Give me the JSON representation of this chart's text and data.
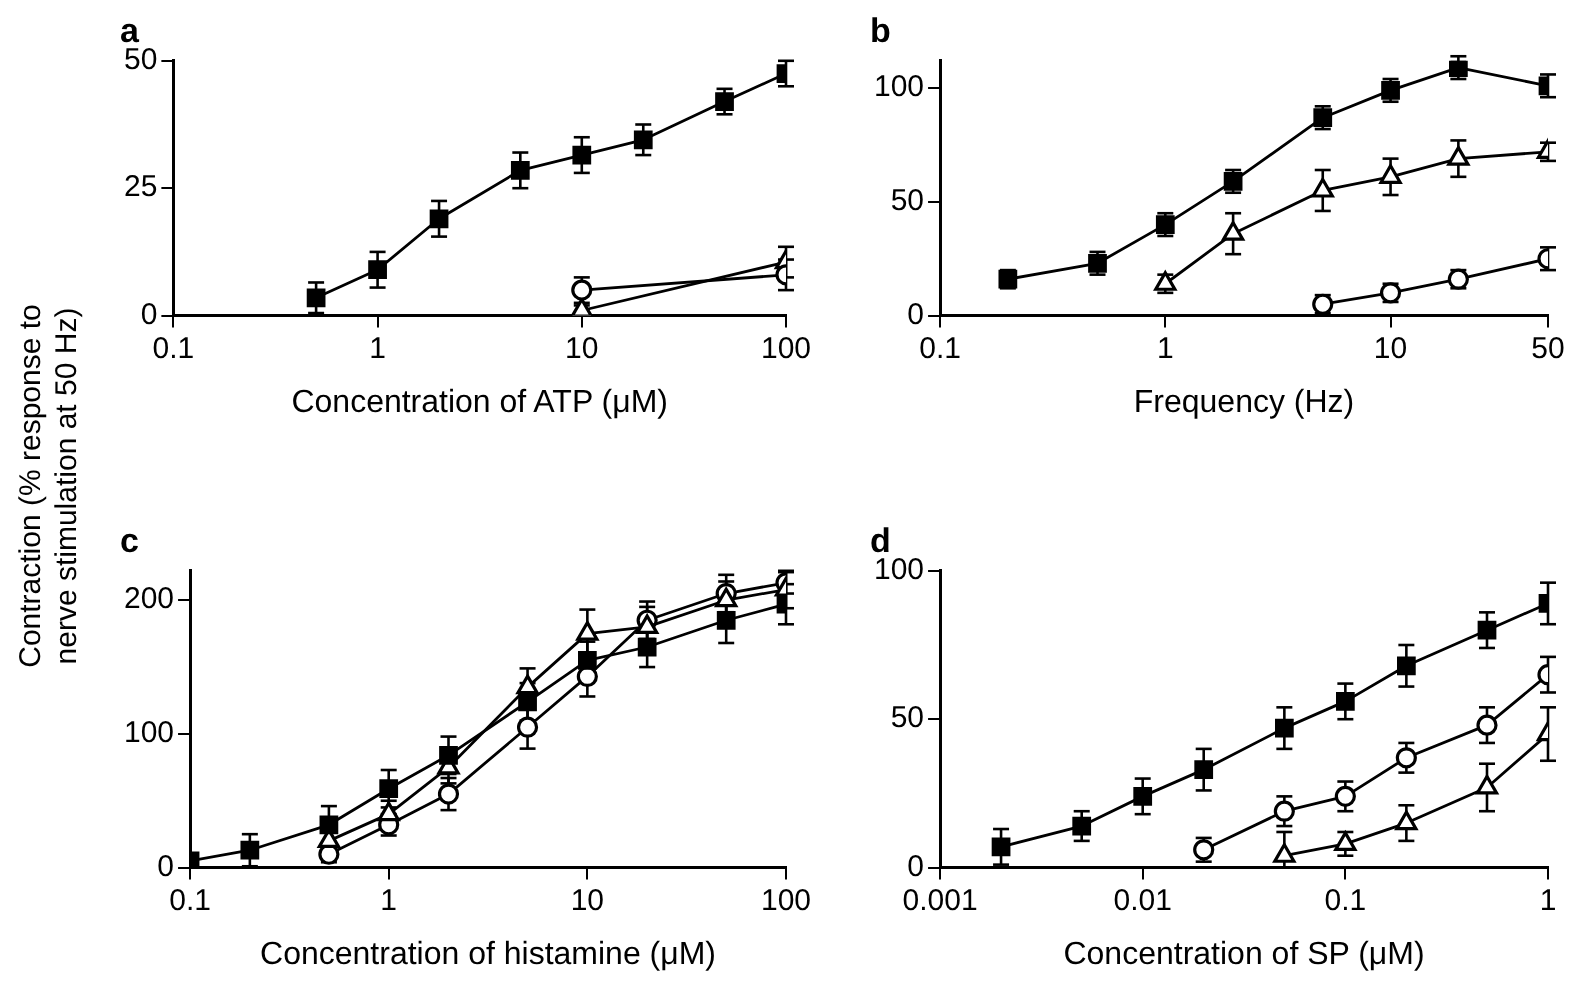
{
  "chart_data": [
    {
      "type": "line",
      "title": "a",
      "xlabel": "Concentration of ATP (μM)",
      "ylabel": "Contraction (% response to nerve stimulation at 50 Hz)",
      "log": "x",
      "xlim": [
        0.1,
        100
      ],
      "xticks": [
        0.1,
        1,
        10,
        100
      ],
      "ylim": [
        0,
        50
      ],
      "yticks": [
        0,
        25,
        50
      ],
      "grid": false,
      "legend": false,
      "series": [
        {
          "color": "#000000",
          "marker": "square",
          "x": [
            0.5,
            1,
            2,
            5,
            10,
            20,
            50,
            100
          ],
          "values": [
            3.5,
            9,
            19,
            28.5,
            31.5,
            34.5,
            42,
            47.5
          ],
          "errors": [
            3,
            3.5,
            3.5,
            3.5,
            3.5,
            3,
            2.5,
            2.5
          ]
        },
        {
          "color": "#000000",
          "marker": "circle",
          "x": [
            10,
            100
          ],
          "values": [
            5,
            8
          ],
          "errors": [
            2.5,
            3
          ]
        },
        {
          "color": "#000000",
          "marker": "triangle",
          "x": [
            10,
            100
          ],
          "values": [
            1,
            10.5
          ],
          "errors": [
            1,
            3
          ]
        }
      ]
    },
    {
      "type": "line",
      "title": "b",
      "xlabel": "Frequency (Hz)",
      "log": "x",
      "xlim": [
        0.1,
        50
      ],
      "xticks": [
        0.1,
        1,
        10,
        50
      ],
      "ylim": [
        0,
        112
      ],
      "yticks": [
        0,
        50,
        100
      ],
      "grid": false,
      "legend": false,
      "series": [
        {
          "color": "#000000",
          "marker": "square",
          "x": [
            0.2,
            0.5,
            1,
            2,
            5,
            10,
            20,
            50
          ],
          "values": [
            16,
            23,
            40,
            59,
            87,
            99,
            109,
            101
          ],
          "errors": [
            4,
            5,
            5,
            5,
            5,
            5,
            5,
            5
          ]
        },
        {
          "color": "#000000",
          "marker": "triangle",
          "x": [
            1,
            2,
            5,
            10,
            20,
            50
          ],
          "values": [
            14,
            36,
            55,
            61,
            69,
            72
          ],
          "errors": [
            4,
            9,
            9,
            8,
            8,
            4
          ]
        },
        {
          "color": "#000000",
          "marker": "circle",
          "x": [
            5,
            10,
            20,
            50
          ],
          "values": [
            5,
            10,
            16,
            25
          ],
          "errors": [
            4,
            4,
            4,
            5
          ]
        }
      ]
    },
    {
      "type": "line",
      "title": "c",
      "xlabel": "Concentration of histamine (μM)",
      "log": "x",
      "xlim": [
        0.1,
        100
      ],
      "xticks": [
        0.1,
        1,
        10,
        100
      ],
      "ylim": [
        0,
        222
      ],
      "yticks": [
        0,
        100,
        200
      ],
      "grid": false,
      "legend": false,
      "series": [
        {
          "color": "#000000",
          "marker": "square",
          "x": [
            0.1,
            0.2,
            0.5,
            1,
            2,
            5,
            10,
            20,
            50,
            100
          ],
          "values": [
            5,
            13,
            32,
            59,
            84,
            124,
            155,
            165,
            185,
            197
          ],
          "errors": [
            null,
            12,
            14,
            14,
            14,
            14,
            14,
            15,
            17,
            15
          ]
        },
        {
          "color": "#000000",
          "marker": "triangle",
          "x": [
            0.5,
            1,
            2,
            5,
            10,
            20,
            50,
            100
          ],
          "values": [
            20,
            40,
            75,
            135,
            175,
            180,
            200,
            208
          ],
          "errors": [
            8,
            10,
            12,
            14,
            18,
            15,
            14,
            14
          ]
        },
        {
          "color": "#000000",
          "marker": "circle",
          "x": [
            0.5,
            1,
            2,
            5,
            10,
            20,
            50,
            100
          ],
          "values": [
            10,
            32,
            55,
            105,
            143,
            185,
            205,
            213
          ],
          "errors": [
            6,
            8,
            12,
            16,
            15,
            14,
            14,
            8
          ]
        }
      ]
    },
    {
      "type": "line",
      "title": "d",
      "xlabel": "Concentration of SP (μM)",
      "log": "x",
      "xlim": [
        0.001,
        1
      ],
      "xticks": [
        0.001,
        0.01,
        0.1,
        1
      ],
      "ylim": [
        0,
        100
      ],
      "yticks": [
        0,
        50,
        100
      ],
      "grid": false,
      "legend": false,
      "series": [
        {
          "color": "#000000",
          "marker": "square",
          "x": [
            0.002,
            0.005,
            0.01,
            0.02,
            0.05,
            0.1,
            0.2,
            0.5,
            1
          ],
          "values": [
            7,
            14,
            24,
            33,
            47,
            56,
            68,
            80,
            89
          ],
          "errors": [
            6,
            5,
            6,
            7,
            7,
            6,
            7,
            6,
            7
          ]
        },
        {
          "color": "#000000",
          "marker": "circle",
          "x": [
            0.02,
            0.05,
            0.1,
            0.2,
            0.5,
            1
          ],
          "values": [
            6,
            19,
            24,
            37,
            48,
            65
          ],
          "errors": [
            4,
            5,
            5,
            5,
            6,
            6
          ]
        },
        {
          "color": "#000000",
          "marker": "triangle",
          "x": [
            0.05,
            0.1,
            0.2,
            0.5,
            1
          ],
          "values": [
            4,
            8,
            15,
            27,
            45
          ],
          "errors": [
            [
              0,
              12
            ],
            4,
            6,
            8,
            9
          ]
        }
      ]
    }
  ]
}
